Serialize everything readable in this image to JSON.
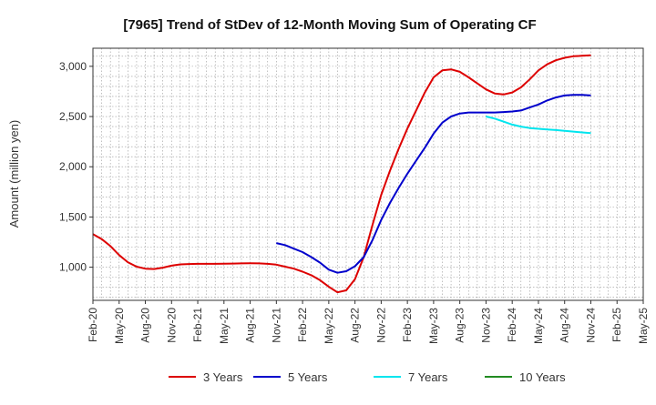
{
  "chart_data": {
    "type": "line",
    "title": "[7965]  Trend of StDev of 12-Month Moving Sum of Operating CF",
    "ylabel": "Amount (million yen)",
    "xlabel": "",
    "ylim": [
      670,
      3180
    ],
    "yticks": [
      1000,
      1500,
      2000,
      2500,
      3000
    ],
    "ytick_labels": [
      "1,000",
      "1,500",
      "2,000",
      "2,500",
      "3,000"
    ],
    "x_start": "Feb-20",
    "x_end": "May-25",
    "xtick_labels": [
      "Feb-20",
      "May-20",
      "Aug-20",
      "Nov-20",
      "Feb-21",
      "May-21",
      "Aug-21",
      "Nov-21",
      "Feb-22",
      "May-22",
      "Aug-22",
      "Nov-22",
      "Feb-23",
      "May-23",
      "Aug-23",
      "Nov-23",
      "Feb-24",
      "May-24",
      "Aug-24",
      "Nov-24",
      "Feb-25",
      "May-25"
    ],
    "grid": true,
    "legend_position": "bottom",
    "series": [
      {
        "name": "3 Years",
        "color": "#dd0000",
        "x": [
          "Feb-20",
          "Mar-20",
          "Apr-20",
          "May-20",
          "Jun-20",
          "Jul-20",
          "Aug-20",
          "Sep-20",
          "Oct-20",
          "Nov-20",
          "Dec-20",
          "Jan-21",
          "Feb-21",
          "Mar-21",
          "Apr-21",
          "May-21",
          "Jun-21",
          "Jul-21",
          "Aug-21",
          "Sep-21",
          "Oct-21",
          "Nov-21",
          "Dec-21",
          "Jan-22",
          "Feb-22",
          "Mar-22",
          "Apr-22",
          "May-22",
          "Jun-22",
          "Jul-22",
          "Aug-22",
          "Sep-22",
          "Oct-22",
          "Nov-22",
          "Dec-22",
          "Jan-23",
          "Feb-23",
          "Mar-23",
          "Apr-23",
          "May-23",
          "Jun-23",
          "Jul-23",
          "Aug-23",
          "Sep-23",
          "Oct-23",
          "Nov-23",
          "Dec-23",
          "Jan-24",
          "Feb-24",
          "Mar-24",
          "Apr-24",
          "May-24",
          "Jun-24",
          "Jul-24",
          "Aug-24",
          "Sep-24",
          "Oct-24",
          "Nov-24"
        ],
        "values": [
          1330,
          1280,
          1210,
          1120,
          1050,
          1005,
          985,
          982,
          995,
          1015,
          1028,
          1032,
          1033,
          1033,
          1033,
          1034,
          1036,
          1038,
          1039,
          1038,
          1033,
          1025,
          1005,
          985,
          955,
          920,
          870,
          805,
          750,
          770,
          880,
          1100,
          1420,
          1720,
          1960,
          2180,
          2380,
          2560,
          2740,
          2890,
          2960,
          2970,
          2945,
          2890,
          2830,
          2770,
          2730,
          2720,
          2740,
          2790,
          2870,
          2960,
          3020,
          3060,
          3085,
          3100,
          3105,
          3110
        ],
        "unit_hint": "million yen"
      },
      {
        "name": "5 Years",
        "color": "#0000cc",
        "x": [
          "Nov-21",
          "Dec-21",
          "Jan-22",
          "Feb-22",
          "Mar-22",
          "Apr-22",
          "May-22",
          "Jun-22",
          "Jul-22",
          "Aug-22",
          "Sep-22",
          "Oct-22",
          "Nov-22",
          "Dec-22",
          "Jan-23",
          "Feb-23",
          "Mar-23",
          "Apr-23",
          "May-23",
          "Jun-23",
          "Jul-23",
          "Aug-23",
          "Sep-23",
          "Oct-23",
          "Nov-23",
          "Dec-23",
          "Jan-24",
          "Feb-24",
          "Mar-24",
          "Apr-24",
          "May-24",
          "Jun-24",
          "Jul-24",
          "Aug-24",
          "Sep-24",
          "Oct-24",
          "Nov-24"
        ],
        "values": [
          1240,
          1220,
          1185,
          1150,
          1100,
          1045,
          975,
          945,
          960,
          1010,
          1100,
          1270,
          1470,
          1640,
          1790,
          1930,
          2060,
          2190,
          2330,
          2440,
          2500,
          2530,
          2540,
          2540,
          2540,
          2540,
          2545,
          2550,
          2560,
          2590,
          2620,
          2660,
          2690,
          2710,
          2715,
          2715,
          2710
        ]
      },
      {
        "name": "7 Years",
        "color": "#00e5ee",
        "x": [
          "Nov-23",
          "Dec-23",
          "Jan-24",
          "Feb-24",
          "Mar-24",
          "Apr-24",
          "May-24",
          "Jun-24",
          "Jul-24",
          "Aug-24",
          "Sep-24",
          "Oct-24",
          "Nov-24"
        ],
        "values": [
          2500,
          2480,
          2450,
          2420,
          2400,
          2385,
          2378,
          2372,
          2365,
          2358,
          2350,
          2342,
          2335
        ]
      },
      {
        "name": "10 Years",
        "color": "#228b22",
        "x": [],
        "values": []
      }
    ]
  }
}
